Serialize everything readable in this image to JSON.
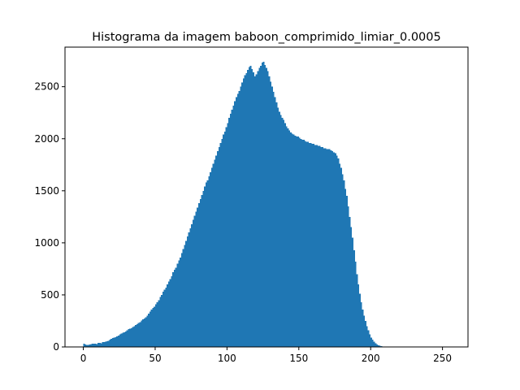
{
  "chart_data": {
    "type": "bar",
    "title": "Histograma da imagem baboon_comprimido_limiar_0.0005",
    "xlabel": "",
    "ylabel": "",
    "xlim": [
      -12.75,
      267.75
    ],
    "ylim": [
      0,
      2880
    ],
    "x_ticks": [
      0,
      50,
      100,
      150,
      200,
      250
    ],
    "x_tick_labels": [
      "0",
      "50",
      "100",
      "150",
      "200",
      "250"
    ],
    "y_ticks": [
      0,
      500,
      1000,
      1500,
      2000,
      2500
    ],
    "y_tick_labels": [
      "0",
      "500",
      "1000",
      "1500",
      "2000",
      "2500"
    ],
    "grid": false,
    "bar_color": "#1f77b4",
    "bin_start": 0,
    "bin_width": 1,
    "values": [
      30,
      22,
      20,
      18,
      25,
      28,
      30,
      32,
      30,
      28,
      38,
      40,
      36,
      45,
      48,
      52,
      56,
      60,
      70,
      80,
      85,
      90,
      95,
      100,
      110,
      120,
      130,
      135,
      140,
      150,
      160,
      170,
      175,
      180,
      190,
      200,
      210,
      220,
      230,
      240,
      255,
      265,
      275,
      285,
      300,
      320,
      340,
      360,
      375,
      385,
      410,
      430,
      450,
      480,
      500,
      530,
      550,
      570,
      600,
      630,
      650,
      680,
      720,
      740,
      760,
      800,
      830,
      860,
      900,
      940,
      980,
      1020,
      1060,
      1100,
      1140,
      1180,
      1220,
      1260,
      1300,
      1340,
      1380,
      1420,
      1460,
      1500,
      1540,
      1580,
      1600,
      1640,
      1680,
      1720,
      1760,
      1800,
      1840,
      1880,
      1920,
      1960,
      2000,
      2040,
      2070,
      2110,
      2150,
      2200,
      2240,
      2280,
      2320,
      2360,
      2400,
      2430,
      2460,
      2500,
      2540,
      2580,
      2610,
      2630,
      2660,
      2690,
      2700,
      2670,
      2640,
      2600,
      2620,
      2650,
      2680,
      2700,
      2730,
      2740,
      2710,
      2680,
      2650,
      2600,
      2550,
      2500,
      2450,
      2400,
      2350,
      2300,
      2260,
      2230,
      2200,
      2180,
      2150,
      2120,
      2100,
      2080,
      2060,
      2050,
      2040,
      2030,
      2020,
      2020,
      2010,
      2000,
      1990,
      1990,
      1980,
      1970,
      1970,
      1960,
      1960,
      1950,
      1950,
      1940,
      1940,
      1930,
      1930,
      1920,
      1920,
      1910,
      1910,
      1900,
      1900,
      1900,
      1890,
      1880,
      1870,
      1860,
      1840,
      1810,
      1760,
      1720,
      1660,
      1600,
      1520,
      1450,
      1350,
      1250,
      1150,
      1050,
      930,
      820,
      700,
      600,
      510,
      430,
      360,
      300,
      250,
      200,
      160,
      120,
      90,
      70,
      50,
      35,
      25,
      15,
      10,
      8,
      5,
      3,
      2,
      1,
      1,
      0,
      0,
      0,
      0,
      0,
      0,
      0,
      0,
      0,
      0,
      0,
      0,
      0,
      0,
      0,
      0,
      0,
      0,
      0,
      0,
      0,
      0,
      0,
      0,
      0,
      0,
      0,
      0,
      0,
      0,
      0,
      0,
      0,
      0,
      0,
      0,
      0,
      0,
      0,
      0,
      0,
      0,
      0
    ]
  }
}
